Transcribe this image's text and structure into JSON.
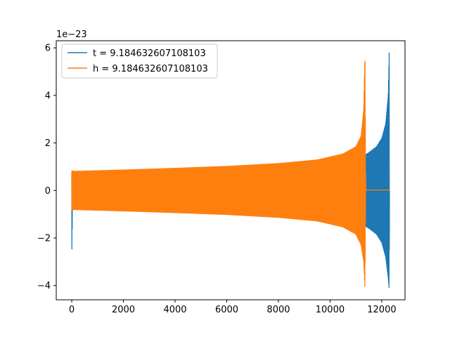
{
  "chart_data": {
    "type": "line",
    "title": "",
    "xlabel": "",
    "ylabel": "",
    "y_offset_label": "1e−23",
    "xlim": [
      -600,
      12900
    ],
    "ylim": [
      -4.6,
      6.3
    ],
    "x_ticks": [
      0,
      2000,
      4000,
      6000,
      8000,
      10000,
      12000
    ],
    "x_tick_labels": [
      "0",
      "2000",
      "4000",
      "6000",
      "8000",
      "10000",
      "12000"
    ],
    "y_ticks": [
      -4,
      -2,
      0,
      2,
      4,
      6
    ],
    "y_tick_labels": [
      "−4",
      "−2",
      "0",
      "2",
      "4",
      "6"
    ],
    "grid": false,
    "legend_position": "top-left",
    "series": [
      {
        "name": "t = 9.184632607108103",
        "color": "#1f77b4",
        "envelope": {
          "x": [
            0,
            30,
            60,
            100,
            2000,
            4000,
            6000,
            8000,
            10000,
            11000,
            11350,
            11500,
            11800,
            12000,
            12150,
            12250,
            12290,
            12300
          ],
          "upper": [
            0.55,
            0.55,
            0.6,
            0.75,
            0.85,
            0.9,
            0.97,
            1.05,
            1.2,
            1.35,
            1.5,
            1.6,
            1.85,
            2.2,
            2.8,
            4.0,
            5.9,
            0
          ],
          "lower": [
            -2.9,
            -0.8,
            -0.8,
            -0.78,
            -0.85,
            -0.9,
            -0.97,
            -1.05,
            -1.2,
            -1.35,
            -1.5,
            -1.6,
            -1.85,
            -2.2,
            -2.8,
            -3.7,
            -4.2,
            0
          ]
        }
      },
      {
        "name": "h = 9.184632607108103",
        "color": "#ff7f0e",
        "envelope": {
          "x": [
            0,
            20,
            60,
            2000,
            4000,
            6000,
            8000,
            9500,
            10500,
            11000,
            11200,
            11300,
            11350,
            11380,
            11400,
            12300
          ],
          "upper": [
            0.8,
            0.85,
            0.82,
            0.88,
            0.95,
            1.03,
            1.15,
            1.3,
            1.55,
            1.85,
            2.3,
            3.4,
            5.85,
            0.02,
            0.02,
            0.02
          ],
          "lower": [
            -0.8,
            -0.85,
            -0.82,
            -0.88,
            -0.95,
            -1.03,
            -1.15,
            -1.3,
            -1.55,
            -1.85,
            -2.3,
            -3.0,
            -4.15,
            0.02,
            0.02,
            0.02
          ]
        }
      }
    ]
  }
}
